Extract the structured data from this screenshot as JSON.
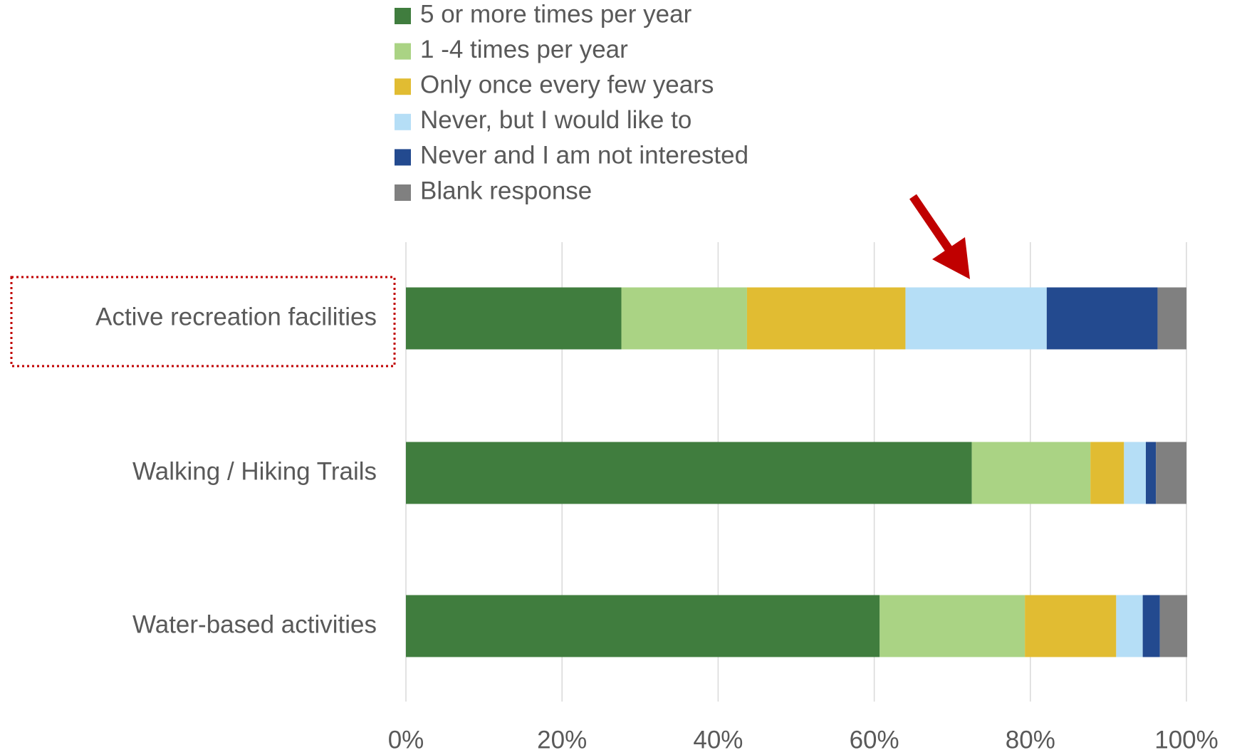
{
  "chart_data": {
    "type": "stacked_barh",
    "categories": [
      "Active recreation facilities",
      "Walking / Hiking Trails",
      "Water-based activities"
    ],
    "series": [
      {
        "name": "5 or more times per year",
        "color": "#407d3e",
        "values": [
          27.6,
          72.5,
          60.7
        ]
      },
      {
        "name": "1 -4 times per year",
        "color": "#aad384",
        "values": [
          16.1,
          15.2,
          18.6
        ]
      },
      {
        "name": "Only  once every few years",
        "color": "#e1bc32",
        "values": [
          20.3,
          4.3,
          11.7
        ]
      },
      {
        "name": "Never, but I would like to",
        "color": "#b5def6",
        "values": [
          18.1,
          2.8,
          3.4
        ]
      },
      {
        "name": "Never and I am not interested",
        "color": "#234a8f",
        "values": [
          14.2,
          1.3,
          2.2
        ]
      },
      {
        "name": "Blank response",
        "color": "#808080",
        "values": [
          3.7,
          3.9,
          3.5
        ]
      }
    ],
    "xlim": [
      0,
      100
    ],
    "xticks": [
      {
        "value": 0,
        "label": "0%"
      },
      {
        "value": 20,
        "label": "20%"
      },
      {
        "value": 40,
        "label": "40%"
      },
      {
        "value": 60,
        "label": "60%"
      },
      {
        "value": 80,
        "label": "80%"
      },
      {
        "value": 100,
        "label": "100%"
      }
    ],
    "grid": true,
    "legend": "top"
  }
}
